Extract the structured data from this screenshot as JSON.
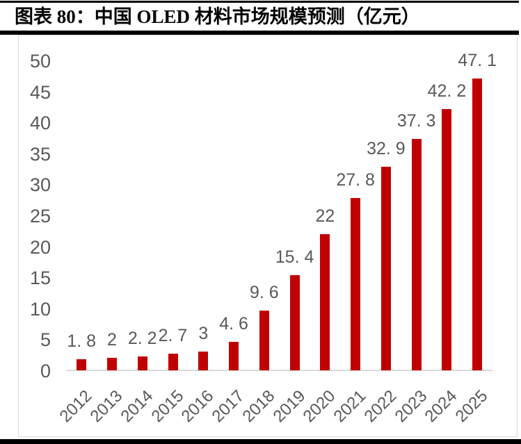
{
  "figure": {
    "caption": "图表 80：中国 OLED 材料市场规模预测（亿元）"
  },
  "chart_data": {
    "type": "bar",
    "title": "中国 OLED 材料市场规模预测",
    "unit": "亿元",
    "categories": [
      "2012",
      "2013",
      "2014",
      "2015",
      "2016",
      "2017",
      "2018",
      "2019",
      "2020",
      "2021",
      "2022",
      "2023",
      "2024",
      "2025"
    ],
    "values": [
      1.8,
      2,
      2.2,
      2.7,
      3,
      4.6,
      9.6,
      15.4,
      22,
      27.8,
      32.9,
      37.3,
      42.2,
      47.1
    ],
    "value_labels": [
      "1. 8",
      "2",
      "2. 2",
      "2. 7",
      "3",
      "4. 6",
      "9. 6",
      "15. 4",
      "22",
      "27. 8",
      "32. 9",
      "37. 3",
      "42. 2",
      "47. 1"
    ],
    "y_ticks": [
      0,
      5,
      10,
      15,
      20,
      25,
      30,
      35,
      40,
      45,
      50
    ],
    "ylim": [
      0,
      50
    ],
    "xlabel": "",
    "ylabel": "",
    "grid": false,
    "legend": "none",
    "colors": {
      "bar": "#c00000",
      "label_text": "#595959",
      "axis_line": "#d9d9d9",
      "frame_border": "#d9d9d9",
      "rule": "#000000",
      "background": "#ffffff"
    }
  }
}
